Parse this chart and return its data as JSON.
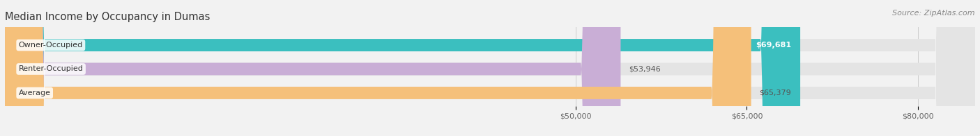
{
  "title": "Median Income by Occupancy in Dumas",
  "source": "Source: ZipAtlas.com",
  "categories": [
    "Owner-Occupied",
    "Renter-Occupied",
    "Average"
  ],
  "values": [
    69681,
    53946,
    65379
  ],
  "bar_colors": [
    "#3bbfbf",
    "#c9aed6",
    "#f5c07a"
  ],
  "bar_labels": [
    "$69,681",
    "$53,946",
    "$65,379"
  ],
  "xlim_min": 0,
  "xlim_max": 85000,
  "xticks": [
    50000,
    65000,
    80000
  ],
  "xtick_labels": [
    "$50,000",
    "$65,000",
    "$80,000"
  ],
  "background_color": "#f2f2f2",
  "bar_bg_color": "#e4e4e4",
  "title_fontsize": 10.5,
  "source_fontsize": 8,
  "label_fontsize": 8,
  "tick_fontsize": 8,
  "value_label_inside_color": [
    "#ffffff",
    "#555555",
    "#555555"
  ],
  "value_label_inside": [
    true,
    false,
    false
  ]
}
